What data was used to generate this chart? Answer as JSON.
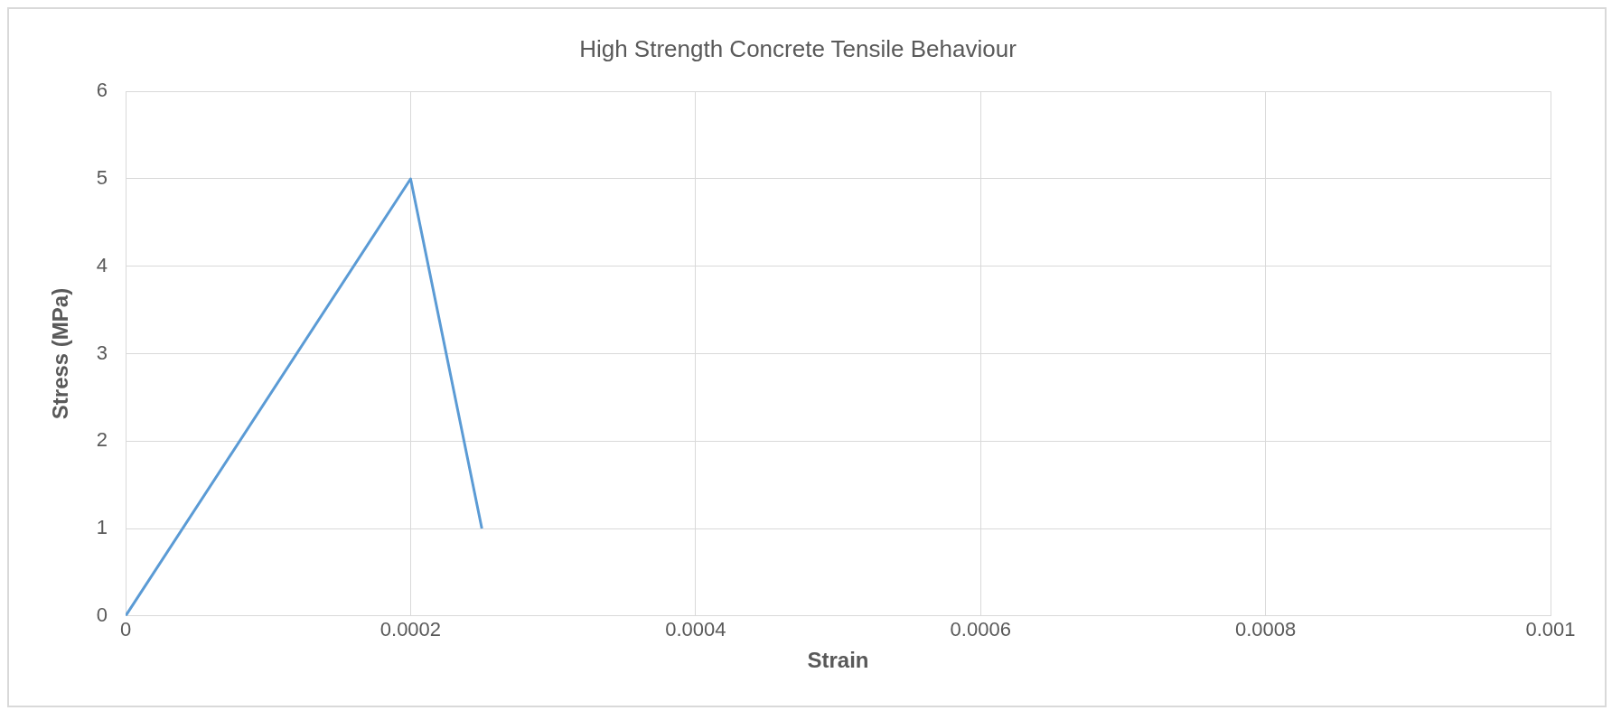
{
  "chart_data": {
    "type": "line",
    "title": "High Strength Concrete Tensile Behaviour",
    "xlabel": "Strain",
    "ylabel": "Stress (MPa)",
    "x": [
      0,
      0.0002,
      0.00025
    ],
    "series": [
      {
        "color": "#5b9bd5",
        "values": [
          0,
          5,
          1
        ]
      }
    ],
    "xlim": [
      0,
      0.001
    ],
    "xticks": [
      0,
      0.0002,
      0.0004,
      0.0006,
      0.0008,
      0.001
    ],
    "ylim": [
      0,
      6
    ],
    "yticks": [
      0,
      1,
      2,
      3,
      4,
      5,
      6
    ],
    "grid": true,
    "marker": "none",
    "line_style": "solid",
    "legend": false
  }
}
